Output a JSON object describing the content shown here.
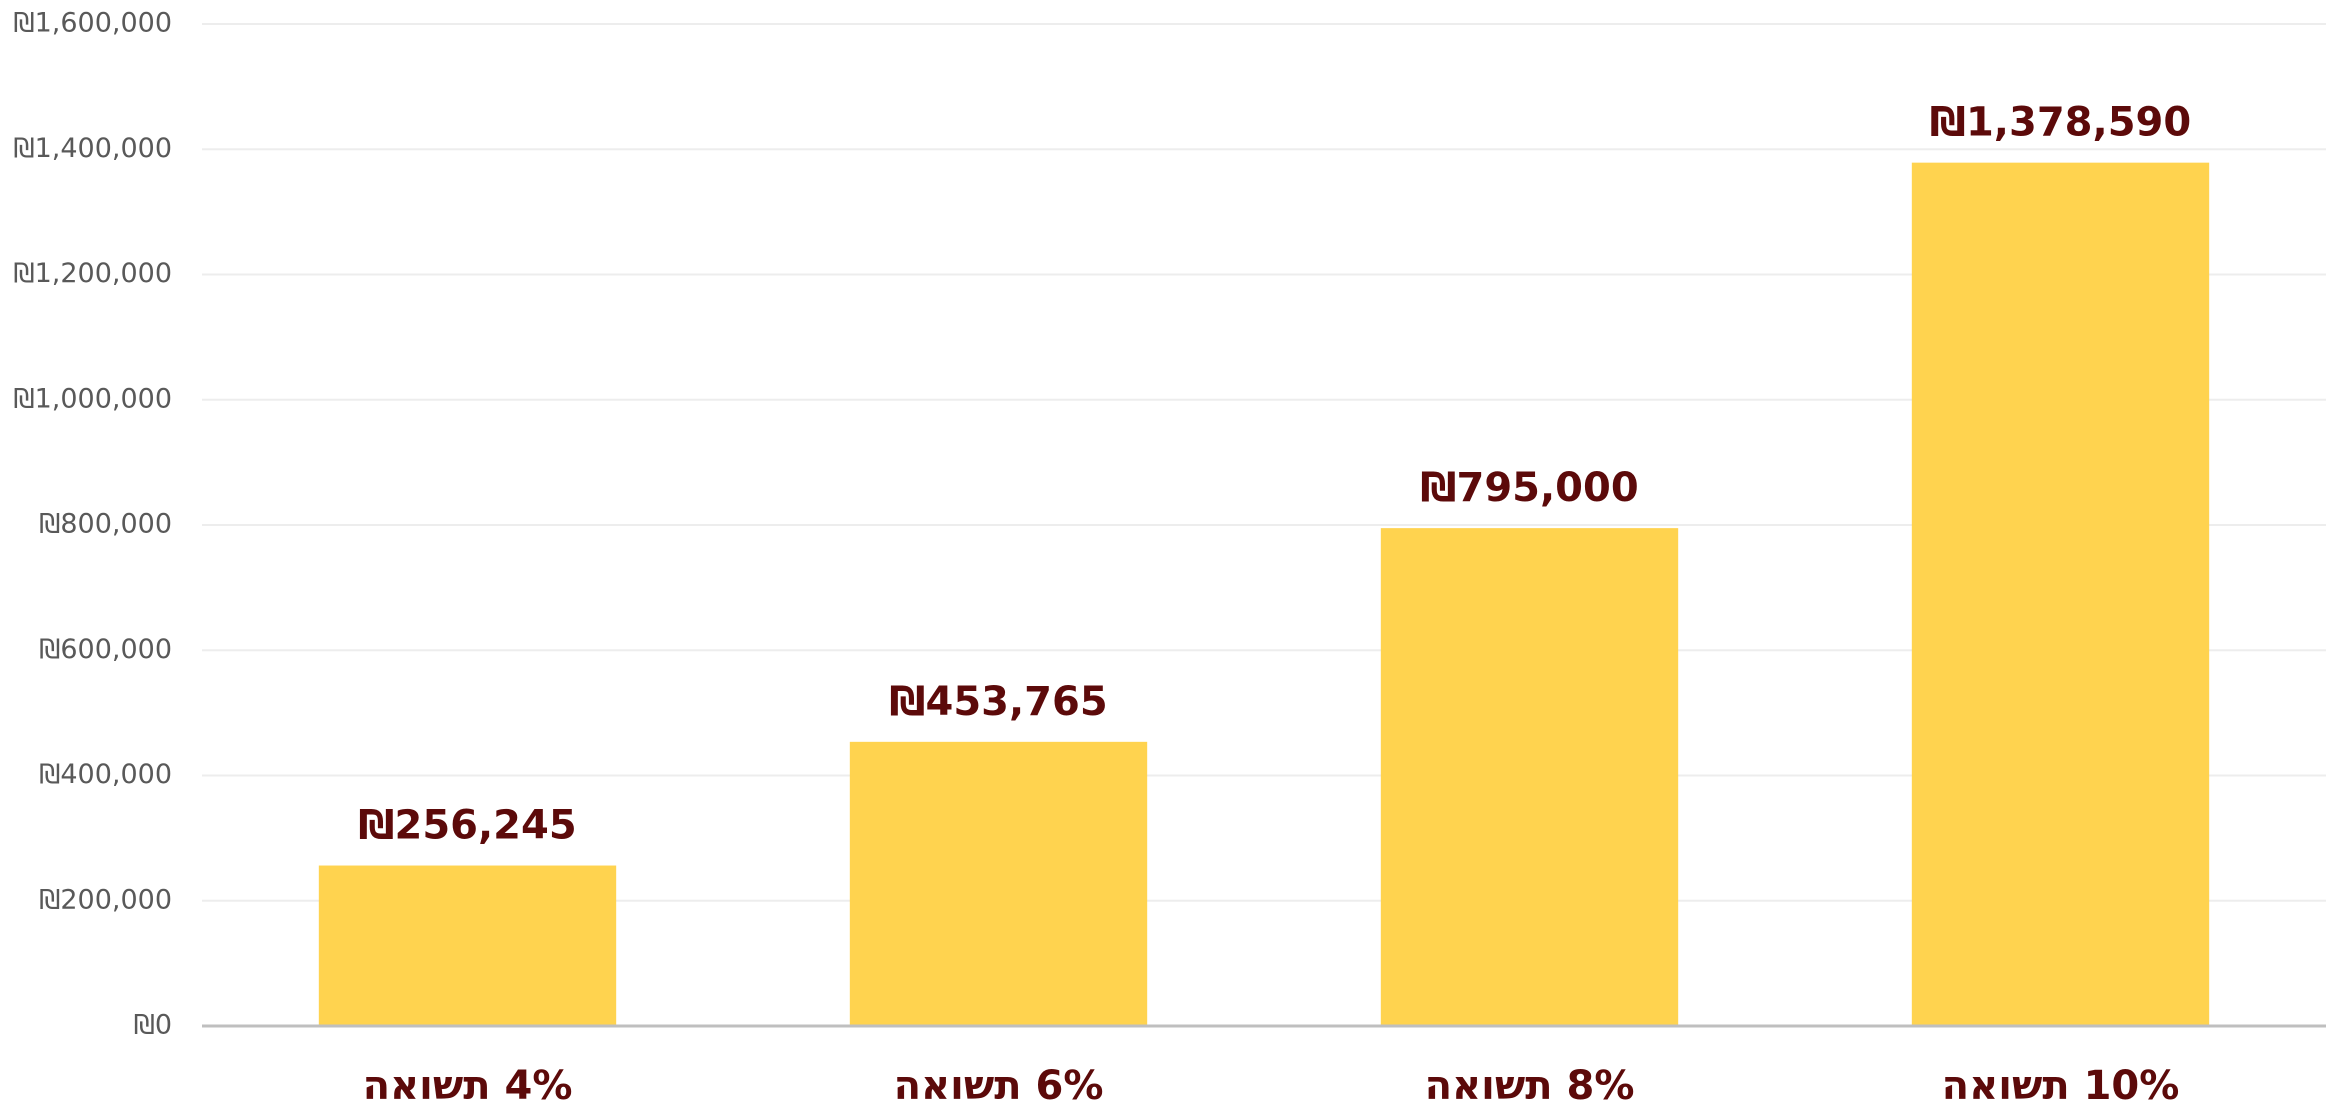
{
  "chart_data": {
    "type": "bar",
    "categories": [
      "4% תשואה",
      "6% תשואה",
      "8% תשואה",
      "10% תשואה"
    ],
    "values": [
      256245,
      453765,
      795000,
      1378590
    ],
    "value_labels": [
      "₪256,245",
      "₪453,765",
      "₪795,000",
      "₪1,378,590"
    ],
    "color": "#FFD34F",
    "ylim": [
      0,
      1600000
    ],
    "yticks": [
      {
        "value": 0,
        "label": "₪0"
      },
      {
        "value": 200000,
        "label": "₪200,000"
      },
      {
        "value": 400000,
        "label": "₪400,000"
      },
      {
        "value": 600000,
        "label": "₪600,000"
      },
      {
        "value": 800000,
        "label": "₪800,000"
      },
      {
        "value": 1000000,
        "label": "₪1,000,000"
      },
      {
        "value": 1200000,
        "label": "₪1,200,000"
      },
      {
        "value": 1400000,
        "label": "₪1,400,000"
      },
      {
        "value": 1600000,
        "label": "₪1,600,000"
      }
    ],
    "grid": true
  }
}
